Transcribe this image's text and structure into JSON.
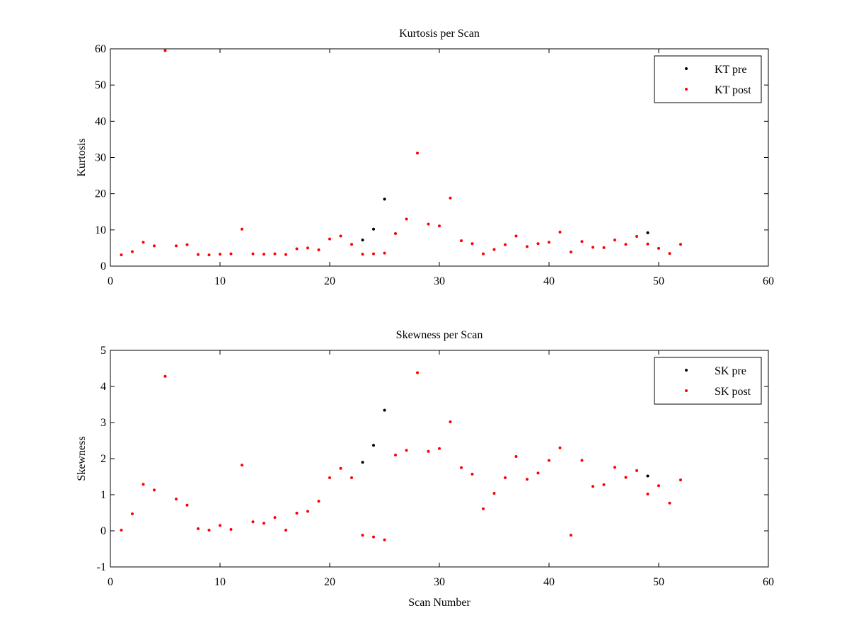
{
  "chart_data": [
    {
      "type": "scatter",
      "title": "Kurtosis per Scan",
      "xlabel": "",
      "ylabel": "Kurtosis",
      "xlim": [
        0,
        60
      ],
      "ylim": [
        0,
        60
      ],
      "xticks": [
        0,
        10,
        20,
        30,
        40,
        50,
        60
      ],
      "yticks": [
        0,
        10,
        20,
        30,
        40,
        50,
        60
      ],
      "xtick_labels": [
        "0",
        "10",
        "20",
        "30",
        "40",
        "50",
        "60"
      ],
      "ytick_labels": [
        "0",
        "10",
        "20",
        "30",
        "40",
        "50",
        "60"
      ],
      "grid": false,
      "legend_position": "top-right",
      "series": [
        {
          "name": "KT pre",
          "color": "#000000",
          "marker": "dot",
          "points": [
            [
              23,
              7.2
            ],
            [
              24,
              10.2
            ],
            [
              25,
              18.5
            ],
            [
              49,
              9.2
            ]
          ]
        },
        {
          "name": "KT post",
          "color": "#ff0000",
          "marker": "dot",
          "points": [
            [
              1,
              3.1
            ],
            [
              2,
              4.0
            ],
            [
              3,
              6.6
            ],
            [
              4,
              5.6
            ],
            [
              5,
              59.5
            ],
            [
              6,
              5.6
            ],
            [
              7,
              5.9
            ],
            [
              8,
              3.2
            ],
            [
              9,
              3.1
            ],
            [
              10,
              3.3
            ],
            [
              11,
              3.4
            ],
            [
              12,
              10.2
            ],
            [
              13,
              3.4
            ],
            [
              14,
              3.3
            ],
            [
              15,
              3.4
            ],
            [
              16,
              3.2
            ],
            [
              17,
              4.8
            ],
            [
              18,
              5.0
            ],
            [
              19,
              4.5
            ],
            [
              20,
              7.5
            ],
            [
              21,
              8.3
            ],
            [
              22,
              6.0
            ],
            [
              23,
              3.3
            ],
            [
              24,
              3.4
            ],
            [
              25,
              3.6
            ],
            [
              26,
              9.0
            ],
            [
              27,
              13.0
            ],
            [
              28,
              31.2
            ],
            [
              29,
              11.6
            ],
            [
              30,
              11.1
            ],
            [
              31,
              18.8
            ],
            [
              32,
              7.0
            ],
            [
              33,
              6.2
            ],
            [
              34,
              3.4
            ],
            [
              35,
              4.6
            ],
            [
              36,
              5.9
            ],
            [
              37,
              8.3
            ],
            [
              38,
              5.4
            ],
            [
              39,
              6.2
            ],
            [
              40,
              6.6
            ],
            [
              41,
              9.4
            ],
            [
              42,
              3.9
            ],
            [
              43,
              6.8
            ],
            [
              44,
              5.2
            ],
            [
              45,
              5.1
            ],
            [
              46,
              7.2
            ],
            [
              47,
              6.0
            ],
            [
              48,
              8.2
            ],
            [
              49,
              6.1
            ],
            [
              50,
              4.9
            ],
            [
              51,
              3.5
            ],
            [
              52,
              6.0
            ]
          ]
        }
      ]
    },
    {
      "type": "scatter",
      "title": "Skewness per Scan",
      "xlabel": "Scan Number",
      "ylabel": "Skewness",
      "xlim": [
        0,
        60
      ],
      "ylim": [
        -1,
        5
      ],
      "xticks": [
        0,
        10,
        20,
        30,
        40,
        50,
        60
      ],
      "yticks": [
        -1,
        0,
        1,
        2,
        3,
        4,
        5
      ],
      "xtick_labels": [
        "0",
        "10",
        "20",
        "30",
        "40",
        "50",
        "60"
      ],
      "ytick_labels": [
        "-1",
        "0",
        "1",
        "2",
        "3",
        "4",
        "5"
      ],
      "grid": false,
      "legend_position": "top-right",
      "series": [
        {
          "name": "SK pre",
          "color": "#000000",
          "marker": "dot",
          "points": [
            [
              23,
              1.9
            ],
            [
              24,
              2.37
            ],
            [
              25,
              3.34
            ],
            [
              49,
              1.52
            ]
          ]
        },
        {
          "name": "SK post",
          "color": "#ff0000",
          "marker": "dot",
          "points": [
            [
              1,
              0.02
            ],
            [
              2,
              0.47
            ],
            [
              3,
              1.29
            ],
            [
              4,
              1.13
            ],
            [
              5,
              4.28
            ],
            [
              6,
              0.88
            ],
            [
              7,
              0.71
            ],
            [
              8,
              0.06
            ],
            [
              9,
              0.02
            ],
            [
              10,
              0.15
            ],
            [
              11,
              0.04
            ],
            [
              12,
              1.82
            ],
            [
              13,
              0.25
            ],
            [
              14,
              0.21
            ],
            [
              15,
              0.37
            ],
            [
              16,
              0.02
            ],
            [
              17,
              0.49
            ],
            [
              18,
              0.54
            ],
            [
              19,
              0.82
            ],
            [
              20,
              1.47
            ],
            [
              21,
              1.73
            ],
            [
              22,
              1.47
            ],
            [
              23,
              -0.12
            ],
            [
              24,
              -0.17
            ],
            [
              25,
              -0.25
            ],
            [
              26,
              2.1
            ],
            [
              27,
              2.23
            ],
            [
              28,
              4.38
            ],
            [
              29,
              2.2
            ],
            [
              30,
              2.28
            ],
            [
              31,
              3.02
            ],
            [
              32,
              1.75
            ],
            [
              33,
              1.57
            ],
            [
              34,
              0.61
            ],
            [
              35,
              1.04
            ],
            [
              36,
              1.47
            ],
            [
              37,
              2.06
            ],
            [
              38,
              1.43
            ],
            [
              39,
              1.6
            ],
            [
              40,
              1.95
            ],
            [
              41,
              2.3
            ],
            [
              42,
              -0.12
            ],
            [
              43,
              1.95
            ],
            [
              44,
              1.23
            ],
            [
              45,
              1.28
            ],
            [
              46,
              1.76
            ],
            [
              47,
              1.48
            ],
            [
              48,
              1.67
            ],
            [
              49,
              1.02
            ],
            [
              50,
              1.25
            ],
            [
              51,
              0.77
            ],
            [
              52,
              1.41
            ]
          ]
        }
      ]
    }
  ]
}
